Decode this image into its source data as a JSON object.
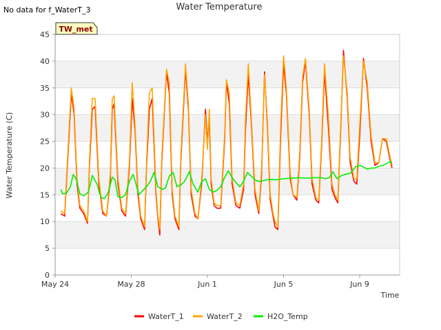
{
  "no_data_note": "No data for f_WaterT_3",
  "tag_label": "TW_met",
  "chart_data": {
    "type": "line",
    "title": "Water Temperature",
    "xlabel": "Time",
    "ylabel": "Water Temperature (C)",
    "ylim": [
      0,
      45
    ],
    "yticks": [
      0,
      5,
      10,
      15,
      20,
      25,
      30,
      35,
      40,
      45
    ],
    "xlim_days": [
      0,
      18.1
    ],
    "xticks": [
      {
        "label": "May 24",
        "day": 0
      },
      {
        "label": "May 28",
        "day": 4
      },
      {
        "label": "Jun 1",
        "day": 8
      },
      {
        "label": "Jun 5",
        "day": 12
      },
      {
        "label": "Jun 9",
        "day": 16
      }
    ],
    "grid": "horizontal bands",
    "legend_position": "bottom-center",
    "series": [
      {
        "name": "WaterT_1",
        "color": "#ff0000",
        "days": [
          0.3,
          0.5,
          0.7,
          0.85,
          1.0,
          1.15,
          1.3,
          1.5,
          1.7,
          1.8,
          1.95,
          2.1,
          2.3,
          2.5,
          2.7,
          2.9,
          3.0,
          3.1,
          3.3,
          3.5,
          3.7,
          3.9,
          4.05,
          4.2,
          4.35,
          4.5,
          4.7,
          4.8,
          4.95,
          5.1,
          5.3,
          5.4,
          5.5,
          5.6,
          5.85,
          6.0,
          6.15,
          6.3,
          6.5,
          6.6,
          6.85,
          7.0,
          7.15,
          7.35,
          7.5,
          7.7,
          7.9,
          8.0,
          8.1,
          8.2,
          8.35,
          8.5,
          8.7,
          8.9,
          9.0,
          9.15,
          9.3,
          9.5,
          9.7,
          9.9,
          10.0,
          10.15,
          10.3,
          10.5,
          10.7,
          10.85,
          11.0,
          11.15,
          11.3,
          11.45,
          11.55,
          11.7,
          11.85,
          12.0,
          12.15,
          12.35,
          12.5,
          12.7,
          12.85,
          13.0,
          13.15,
          13.35,
          13.5,
          13.7,
          13.85,
          14.0,
          14.15,
          14.35,
          14.55,
          14.7,
          14.85,
          15.0,
          15.15,
          15.35,
          15.5,
          15.7,
          15.85,
          16.0,
          16.2,
          16.4,
          16.6,
          16.8,
          17.0,
          17.2,
          17.4,
          17.6,
          17.7
        ],
        "values": [
          11.5,
          11.0,
          24.0,
          34.0,
          30.0,
          17.0,
          12.5,
          11.5,
          9.7,
          20.0,
          31.0,
          31.5,
          17.0,
          11.5,
          11.0,
          18.0,
          31.0,
          32.0,
          17.0,
          12.0,
          11.0,
          20.0,
          33.0,
          27.0,
          15.0,
          10.5,
          8.5,
          20.0,
          31.0,
          33.0,
          15.0,
          10.5,
          7.5,
          21.0,
          38.0,
          34.0,
          15.0,
          10.5,
          8.5,
          21.0,
          38.5,
          31.0,
          15.0,
          11.0,
          10.5,
          17.0,
          31.0,
          25.0,
          29.0,
          17.0,
          13.0,
          12.5,
          12.5,
          25.0,
          36.0,
          32.0,
          17.0,
          13.0,
          12.5,
          16.0,
          27.0,
          37.5,
          29.0,
          15.0,
          11.5,
          19.0,
          38.0,
          28.0,
          14.0,
          11.0,
          9.0,
          8.5,
          26.0,
          39.5,
          34.0,
          18.0,
          15.0,
          14.0,
          22.0,
          36.0,
          40.0,
          30.0,
          17.0,
          14.0,
          13.5,
          24.0,
          38.0,
          28.0,
          16.0,
          14.5,
          13.5,
          27.0,
          42.0,
          33.0,
          21.0,
          17.5,
          17.0,
          26.0,
          40.5,
          35.0,
          25.0,
          20.5,
          21.0,
          25.5,
          25.0,
          21.5,
          20.0
        ]
      },
      {
        "name": "WaterT_2",
        "color": "#ffa500",
        "days": [
          0.3,
          0.5,
          0.7,
          0.85,
          1.0,
          1.15,
          1.3,
          1.5,
          1.7,
          1.8,
          1.95,
          2.1,
          2.3,
          2.5,
          2.7,
          2.9,
          3.0,
          3.1,
          3.3,
          3.5,
          3.7,
          3.9,
          4.05,
          4.2,
          4.35,
          4.5,
          4.7,
          4.8,
          4.95,
          5.1,
          5.3,
          5.4,
          5.5,
          5.6,
          5.85,
          6.0,
          6.15,
          6.3,
          6.5,
          6.6,
          6.85,
          7.0,
          7.15,
          7.35,
          7.5,
          7.7,
          7.9,
          8.0,
          8.1,
          8.2,
          8.35,
          8.5,
          8.7,
          8.9,
          9.0,
          9.15,
          9.3,
          9.5,
          9.7,
          9.9,
          10.0,
          10.15,
          10.3,
          10.5,
          10.7,
          10.85,
          11.0,
          11.15,
          11.3,
          11.45,
          11.55,
          11.7,
          11.85,
          12.0,
          12.15,
          12.35,
          12.5,
          12.7,
          12.85,
          13.0,
          13.15,
          13.35,
          13.5,
          13.7,
          13.85,
          14.0,
          14.15,
          14.35,
          14.55,
          14.7,
          14.85,
          15.0,
          15.15,
          15.35,
          15.5,
          15.7,
          15.85,
          16.0,
          16.2,
          16.4,
          16.6,
          16.8,
          17.0,
          17.2,
          17.4,
          17.6,
          17.7
        ],
        "values": [
          12.0,
          11.5,
          25.0,
          35.0,
          31.0,
          18.0,
          13.0,
          12.0,
          10.0,
          21.0,
          33.0,
          33.0,
          18.0,
          12.0,
          11.0,
          19.0,
          33.0,
          33.5,
          18.0,
          12.5,
          11.5,
          21.0,
          36.0,
          28.0,
          16.0,
          11.0,
          9.0,
          21.0,
          34.0,
          35.0,
          16.0,
          11.0,
          8.5,
          22.0,
          38.5,
          36.0,
          16.0,
          11.0,
          9.0,
          22.0,
          39.5,
          32.0,
          16.0,
          11.5,
          10.5,
          18.0,
          30.0,
          23.5,
          31.0,
          18.0,
          13.5,
          13.0,
          13.0,
          26.0,
          36.5,
          34.0,
          18.0,
          13.5,
          13.0,
          17.0,
          29.0,
          39.5,
          30.0,
          16.0,
          12.0,
          20.0,
          37.5,
          29.0,
          15.0,
          11.5,
          10.0,
          9.0,
          28.0,
          41.0,
          35.0,
          19.0,
          15.0,
          14.5,
          23.0,
          37.0,
          40.5,
          31.0,
          18.0,
          14.5,
          14.0,
          25.0,
          39.5,
          30.0,
          17.0,
          15.0,
          14.0,
          28.0,
          41.0,
          34.0,
          22.0,
          18.0,
          18.0,
          28.0,
          40.0,
          36.0,
          26.0,
          21.0,
          21.0,
          25.5,
          25.5,
          22.0,
          20.5
        ]
      },
      {
        "name": "H2O_Temp",
        "color": "#00ee00",
        "days": [
          0.3,
          0.4,
          0.6,
          0.8,
          0.95,
          1.1,
          1.3,
          1.5,
          1.75,
          1.95,
          2.2,
          2.4,
          2.6,
          2.8,
          3.0,
          3.15,
          3.3,
          3.5,
          3.7,
          3.9,
          4.1,
          4.25,
          4.4,
          4.6,
          4.8,
          5.0,
          5.2,
          5.4,
          5.65,
          5.8,
          6.0,
          6.2,
          6.4,
          6.6,
          6.8,
          7.05,
          7.25,
          7.5,
          7.7,
          7.9,
          8.1,
          8.3,
          8.5,
          8.7,
          8.9,
          9.1,
          9.3,
          9.5,
          9.7,
          9.9,
          10.1,
          10.3,
          10.5,
          10.7,
          10.9,
          11.1,
          11.3,
          11.6,
          12.0,
          12.4,
          12.8,
          13.2,
          13.6,
          14.0,
          14.2,
          14.4,
          14.6,
          14.8,
          15.0,
          15.2,
          15.5,
          15.8,
          16.0,
          16.2,
          16.4,
          16.6,
          16.8,
          17.0,
          17.2,
          17.4,
          17.6,
          17.7
        ],
        "values": [
          16.0,
          15.2,
          15.3,
          16.5,
          18.8,
          18.0,
          15.2,
          14.8,
          15.5,
          18.6,
          17.0,
          14.5,
          14.3,
          15.5,
          18.3,
          17.8,
          14.6,
          14.5,
          15.0,
          17.5,
          18.8,
          17.0,
          15.0,
          15.8,
          16.5,
          17.5,
          19.2,
          16.5,
          16.0,
          16.3,
          18.5,
          19.2,
          16.5,
          16.8,
          17.5,
          19.3,
          17.0,
          15.5,
          17.5,
          18.0,
          16.0,
          15.5,
          15.8,
          16.5,
          18.2,
          19.5,
          18.2,
          17.3,
          16.5,
          17.5,
          19.2,
          18.5,
          17.8,
          17.5,
          17.6,
          17.8,
          17.9,
          17.8,
          18.0,
          18.1,
          18.2,
          18.1,
          18.2,
          18.2,
          18.0,
          18.2,
          19.3,
          18.0,
          18.5,
          18.8,
          19.0,
          20.3,
          20.5,
          20.2,
          19.8,
          20.0,
          20.0,
          20.3,
          20.5,
          20.8,
          21.2,
          21.0
        ]
      }
    ]
  }
}
